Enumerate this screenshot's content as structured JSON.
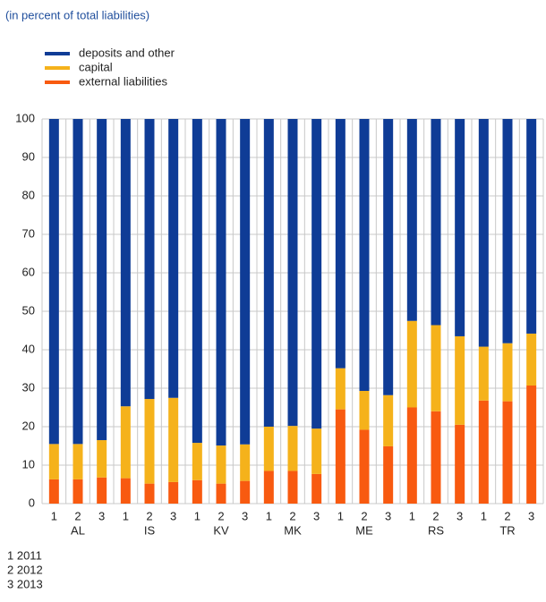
{
  "chart_data": {
    "type": "stacked-bar",
    "subtitle": "(in percent of total liabilities)",
    "categories": [
      "1",
      "2",
      "3",
      "1",
      "2",
      "3",
      "1",
      "2",
      "3",
      "1",
      "2",
      "3",
      "1",
      "2",
      "3",
      "1",
      "2",
      "3",
      "1",
      "2",
      "3"
    ],
    "groups": [
      "AL",
      "IS",
      "KV",
      "MK",
      "ME",
      "RS",
      "TR"
    ],
    "series": [
      {
        "name": "external liabilities",
        "color": "#f85a10",
        "values": [
          6.3,
          6.3,
          6.8,
          6.6,
          5.2,
          5.6,
          6.1,
          5.2,
          5.9,
          8.5,
          8.5,
          7.7,
          24.5,
          19.2,
          14.9,
          25.0,
          24.0,
          20.5,
          26.8,
          26.6,
          30.7
        ]
      },
      {
        "name": "capital",
        "color": "#f5b21b",
        "values": [
          9.2,
          9.2,
          9.7,
          18.7,
          22.0,
          21.9,
          9.7,
          9.9,
          9.5,
          11.5,
          11.7,
          11.8,
          10.7,
          10.1,
          13.3,
          22.5,
          22.4,
          23.0,
          14.0,
          15.1,
          13.5
        ]
      },
      {
        "name": "deposits and other",
        "color": "#0f3c96",
        "values": [
          84.5,
          84.5,
          83.5,
          74.7,
          72.8,
          72.5,
          84.2,
          84.9,
          84.6,
          80.0,
          79.8,
          80.5,
          64.8,
          70.7,
          71.8,
          52.5,
          53.6,
          56.5,
          59.2,
          58.3,
          55.8
        ]
      }
    ],
    "ylim": [
      0,
      100
    ],
    "yticks": [
      0,
      10,
      20,
      30,
      40,
      50,
      60,
      70,
      80,
      90,
      100
    ],
    "grid": true,
    "notes": [
      "1 2011",
      "2 2012",
      "3 2013"
    ]
  }
}
